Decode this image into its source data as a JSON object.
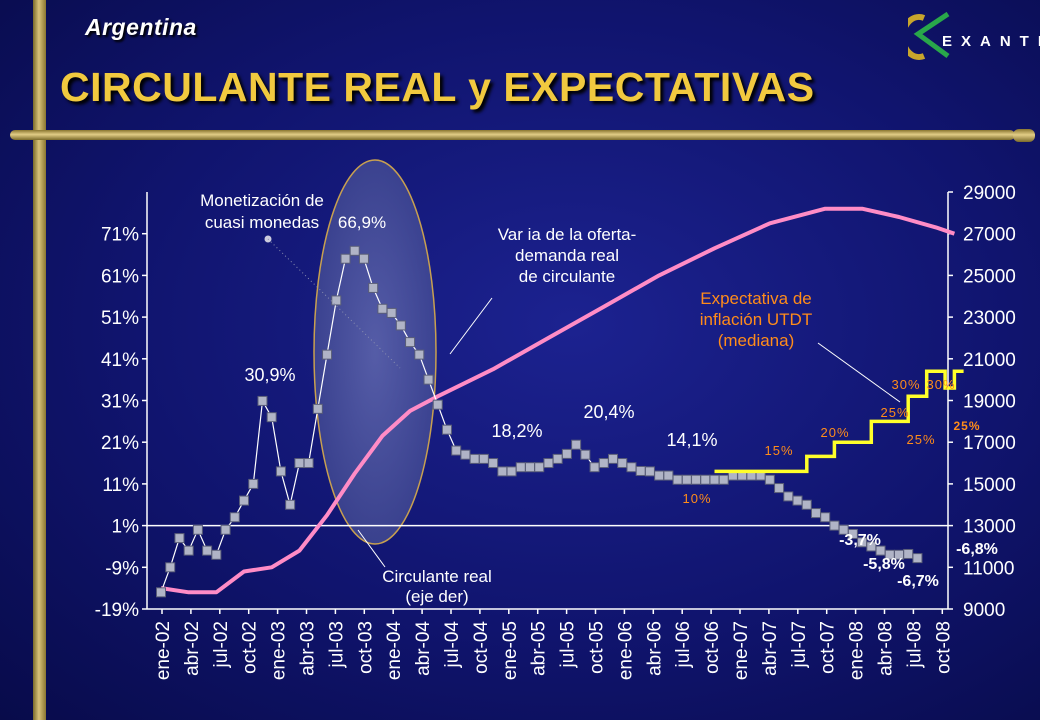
{
  "header": {
    "country": "Argentina",
    "title": "CIRCULANTE REAL y EXPECTATIVAS",
    "logo_text": "EXANTE"
  },
  "colors": {
    "title": "#f1c93f",
    "series_left": "#b0b4c6",
    "series_right": "#ff8cc6",
    "expectation": "#ffff2a",
    "expectation_labels": "#ff8c1a",
    "annotation_text": "#ffffff"
  },
  "chart_data": {
    "type": "line",
    "x_categories": [
      "ene-02",
      "abr-02",
      "jul-02",
      "oct-02",
      "ene-03",
      "abr-03",
      "jul-03",
      "oct-03",
      "ene-04",
      "abr-04",
      "jul-04",
      "oct-04",
      "ene-05",
      "abr-05",
      "jul-05",
      "oct-05",
      "ene-06",
      "abr-06",
      "jul-06",
      "oct-06",
      "ene-07",
      "abr-07",
      "jul-07",
      "oct-07",
      "ene-08",
      "abr-08",
      "jul-08",
      "oct-08"
    ],
    "y_left": {
      "ticks": [
        "71%",
        "61%",
        "51%",
        "41%",
        "31%",
        "21%",
        "11%",
        "1%",
        "-9%",
        "-19%"
      ],
      "range": [
        -19,
        81
      ]
    },
    "y_right": {
      "ticks": [
        "29000",
        "27000",
        "25000",
        "23000",
        "21000",
        "19000",
        "17000",
        "15000",
        "13000",
        "11000",
        "9000"
      ],
      "range": [
        9000,
        29000
      ]
    },
    "series": [
      {
        "axis": "left",
        "start": "ene-02",
        "values": [
          -15,
          -9,
          -2,
          -5,
          0,
          -5,
          -6,
          0,
          3,
          7,
          11,
          30.9,
          27,
          14,
          6,
          16,
          16,
          29,
          42,
          55,
          65,
          66.9,
          65,
          58,
          53,
          52,
          49,
          45,
          42,
          36,
          30,
          24,
          19,
          18,
          17,
          17,
          16,
          14,
          14,
          15,
          15,
          15,
          16,
          17,
          18.2,
          20.4,
          18,
          15,
          16,
          17,
          16,
          15,
          14.1,
          14,
          13,
          13,
          12,
          12,
          12,
          12,
          12,
          12,
          13,
          13,
          13,
          13,
          12,
          10,
          8,
          7,
          6,
          4,
          3,
          1,
          0,
          -1,
          -3,
          -4,
          -5,
          -6,
          -6,
          -5.8,
          -6.8
        ]
      },
      {
        "name": "Circulante real (eje der)",
        "axis": "right",
        "x": [
          0,
          3,
          6,
          9,
          12,
          15,
          18,
          21,
          24,
          27,
          30,
          36,
          42,
          48,
          54,
          60,
          66,
          72,
          76,
          80,
          84,
          86
        ],
        "values": [
          10000,
          9800,
          9800,
          10800,
          11000,
          11800,
          13500,
          15500,
          17300,
          18500,
          19200,
          20500,
          22000,
          23500,
          25000,
          26300,
          27500,
          28200,
          28200,
          27800,
          27300,
          27000
        ]
      },
      {
        "name": "Expectativa de inflación UTDT (mediana)",
        "axis": "left",
        "x": [
          60,
          70,
          70,
          73,
          73,
          77,
          77,
          81,
          81,
          83,
          83,
          85,
          85,
          86,
          86,
          87
        ],
        "values": [
          14,
          14,
          17.6,
          17.6,
          21,
          21,
          26,
          26,
          32,
          32,
          38,
          38,
          34,
          34,
          38,
          38
        ]
      }
    ],
    "annotations": {
      "monetizacion": [
        "Monetización de",
        "cuasi monedas"
      ],
      "peak": "66,9%",
      "var_oferta": [
        "Var ia de la oferta-",
        "demanda real",
        "de circulante"
      ],
      "circulante": [
        "Circulante real",
        "(eje der)"
      ],
      "expectativa": [
        "Expectativa de",
        "inflación UTDT",
        "(mediana)"
      ],
      "values": [
        "30,9%",
        "18,2%",
        "20,4%",
        "14,1%",
        "-3,7%",
        "-5,8%",
        "-6,7%",
        "-6,8%"
      ],
      "exp_values": [
        "10%",
        "15%",
        "20%",
        "25%",
        "30%",
        "30%",
        "25%",
        "25%"
      ]
    }
  }
}
